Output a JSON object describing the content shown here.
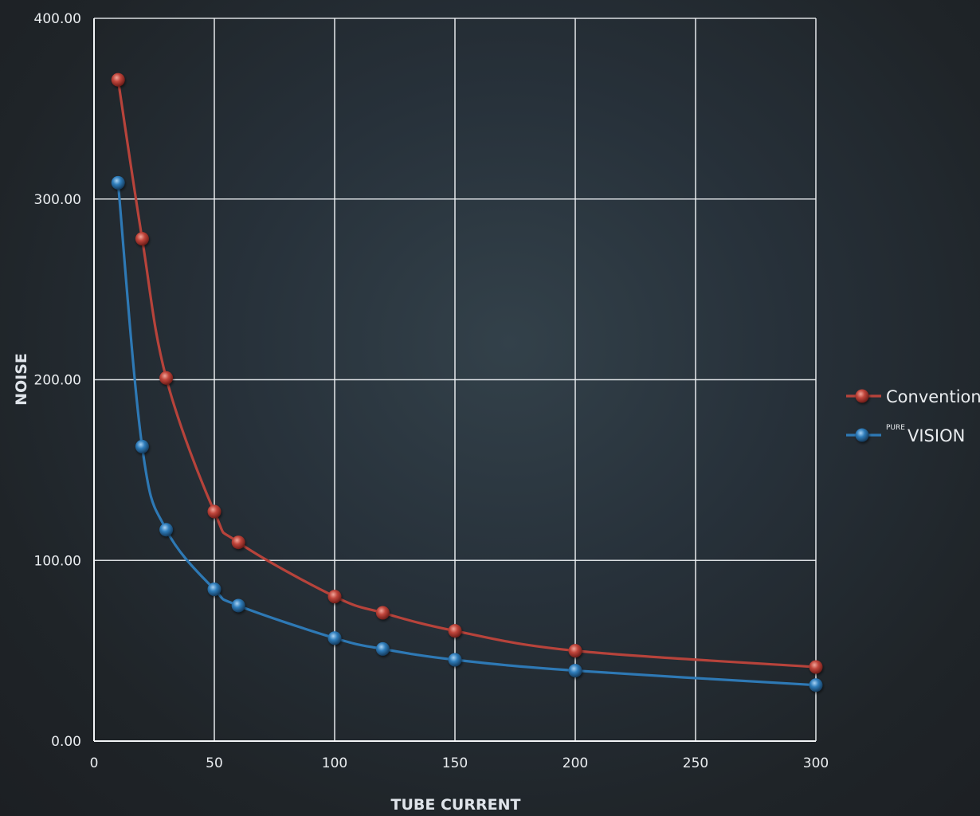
{
  "chart_data": {
    "type": "line",
    "xlabel": "TUBE CURRENT",
    "ylabel": "NOISE",
    "xlim": [
      0,
      300
    ],
    "ylim": [
      0,
      400
    ],
    "x_ticks": [
      "0",
      "50",
      "100",
      "150",
      "200",
      "250",
      "300"
    ],
    "y_ticks": [
      "0.00",
      "100.00",
      "200.00",
      "300.00",
      "400.00"
    ],
    "grid": true,
    "legend_position": "right",
    "series": [
      {
        "name": "Conventional",
        "color": "#b7433b",
        "x": [
          10,
          20,
          30,
          50,
          60,
          100,
          120,
          150,
          200,
          300
        ],
        "y": [
          366,
          278,
          201,
          127,
          110,
          80,
          71,
          61,
          50,
          41
        ]
      },
      {
        "name_sup": "PURE",
        "name": "VISION",
        "color": "#2e79b5",
        "x": [
          10,
          20,
          30,
          50,
          60,
          100,
          120,
          150,
          200,
          300
        ],
        "y": [
          309,
          163,
          117,
          84,
          75,
          57,
          51,
          45,
          39,
          31
        ]
      }
    ]
  }
}
